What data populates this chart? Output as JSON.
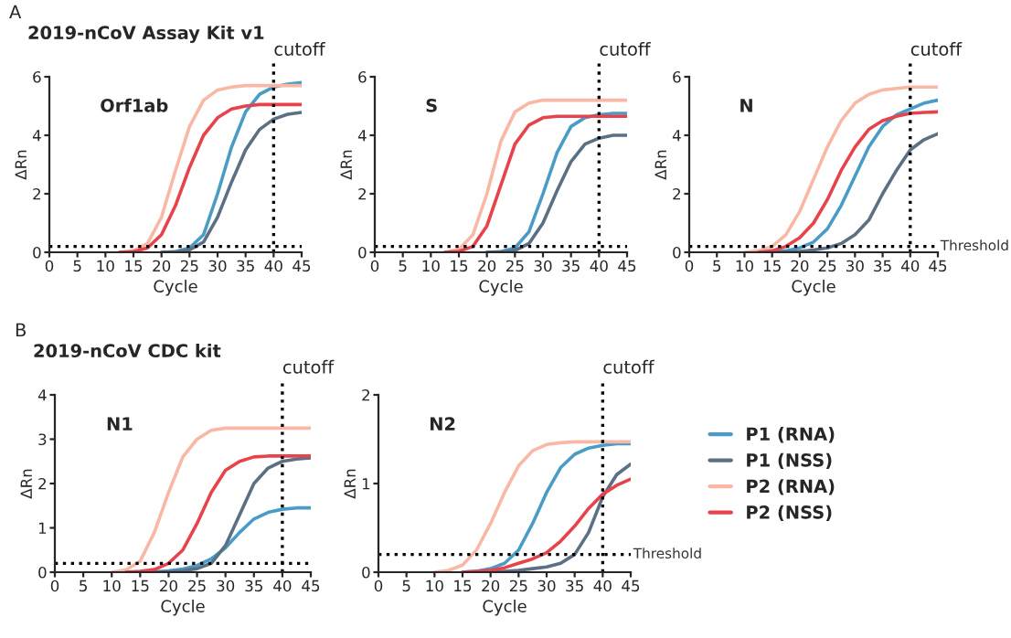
{
  "chart_data": [
    {
      "type": "line",
      "title": "2019-nCoV Assay Kit v1",
      "annotations": [
        "Orf1ab",
        "A"
      ],
      "xlabel": "Cycle",
      "ylabel": "ΔRn",
      "xlim": [
        0,
        45
      ],
      "xticks": [
        0,
        5,
        10,
        15,
        20,
        25,
        30,
        35,
        40,
        45
      ],
      "ylim": [
        0,
        6
      ],
      "yticks": [
        0,
        2,
        4,
        6
      ],
      "grid": false,
      "legend": false,
      "line_style": "solid",
      "x": [
        12.5,
        15,
        17.5,
        20,
        22.5,
        25,
        27.5,
        30,
        32.5,
        35,
        37.5,
        40,
        42.5,
        45
      ],
      "ref_lines": [
        {
          "axis": "x",
          "value": 40,
          "label": "cutoff",
          "color": "#000000",
          "line_style": "dotted"
        },
        {
          "axis": "y",
          "value": 0.2,
          "label": null,
          "color": "#000000",
          "line_style": "dotted"
        }
      ],
      "series": [
        {
          "color": "#4a9cc7",
          "values": [
            null,
            null,
            null,
            0,
            0.02,
            0.15,
            0.6,
            2.0,
            3.6,
            4.8,
            5.4,
            5.65,
            5.75,
            5.8
          ]
        },
        {
          "color": "#5b6f85",
          "values": [
            null,
            null,
            null,
            0,
            0.01,
            0.08,
            0.35,
            1.2,
            2.4,
            3.5,
            4.2,
            4.55,
            4.72,
            4.78
          ]
        },
        {
          "color": "#f9b8a5",
          "values": [
            0,
            0.05,
            0.3,
            1.2,
            2.8,
            4.3,
            5.2,
            5.55,
            5.65,
            5.7,
            5.7,
            5.7,
            5.7,
            5.7
          ]
        },
        {
          "color": "#e8434b",
          "values": [
            0,
            0.02,
            0.15,
            0.6,
            1.6,
            2.9,
            4.0,
            4.6,
            4.9,
            5.0,
            5.05,
            5.05,
            5.05,
            5.05
          ]
        }
      ]
    },
    {
      "type": "line",
      "annotations": [
        "S"
      ],
      "xlabel": "Cycle",
      "ylabel": "ΔRn",
      "xlim": [
        0,
        45
      ],
      "xticks": [
        0,
        5,
        10,
        15,
        20,
        25,
        30,
        35,
        40,
        45
      ],
      "ylim": [
        0,
        6
      ],
      "yticks": [
        0,
        2,
        4,
        6
      ],
      "grid": false,
      "legend": false,
      "line_style": "solid",
      "x": [
        12.5,
        15,
        17.5,
        20,
        22.5,
        25,
        27.5,
        30,
        32.5,
        35,
        37.5,
        40,
        42.5,
        45
      ],
      "ref_lines": [
        {
          "axis": "x",
          "value": 40,
          "label": "cutoff",
          "color": "#000000",
          "line_style": "dotted"
        },
        {
          "axis": "y",
          "value": 0.2,
          "label": null,
          "color": "#000000",
          "line_style": "dotted"
        }
      ],
      "series": [
        {
          "color": "#4a9cc7",
          "values": [
            null,
            null,
            null,
            0,
            0.02,
            0.15,
            0.7,
            2.0,
            3.4,
            4.3,
            4.6,
            4.7,
            4.75,
            4.75
          ]
        },
        {
          "color": "#5b6f85",
          "values": [
            null,
            null,
            null,
            0,
            0.01,
            0.06,
            0.3,
            1.0,
            2.1,
            3.1,
            3.7,
            3.9,
            4.0,
            4.0
          ]
        },
        {
          "color": "#f9b8a5",
          "values": [
            0,
            0.1,
            0.6,
            2.0,
            3.8,
            4.8,
            5.1,
            5.2,
            5.2,
            5.2,
            5.2,
            5.2,
            5.2,
            5.2
          ]
        },
        {
          "color": "#e8434b",
          "values": [
            0,
            0.03,
            0.2,
            0.9,
            2.3,
            3.7,
            4.35,
            4.6,
            4.65,
            4.65,
            4.65,
            4.65,
            4.65,
            4.65
          ]
        }
      ]
    },
    {
      "type": "line",
      "annotations": [
        "N"
      ],
      "xlabel": "Cycle",
      "ylabel": "ΔRn",
      "xlim": [
        0,
        45
      ],
      "xticks": [
        0,
        5,
        10,
        15,
        20,
        25,
        30,
        35,
        40,
        45
      ],
      "ylim": [
        0,
        6
      ],
      "yticks": [
        0,
        2,
        4,
        6
      ],
      "grid": false,
      "legend": false,
      "line_style": "solid",
      "x": [
        10,
        12.5,
        15,
        17.5,
        20,
        22.5,
        25,
        27.5,
        30,
        32.5,
        35,
        37.5,
        40,
        42.5,
        45
      ],
      "ref_lines": [
        {
          "axis": "x",
          "value": 40,
          "label": "cutoff",
          "color": "#000000",
          "line_style": "dotted"
        },
        {
          "axis": "y",
          "value": 0.2,
          "label": "Threshold",
          "color": "#000000",
          "line_style": "dotted"
        }
      ],
      "series": [
        {
          "color": "#4a9cc7",
          "values": [
            null,
            null,
            0,
            0.05,
            0.15,
            0.35,
            0.8,
            1.6,
            2.6,
            3.6,
            4.3,
            4.7,
            4.9,
            5.1,
            5.2
          ]
        },
        {
          "color": "#5b6f85",
          "values": [
            null,
            null,
            0,
            0.01,
            0.03,
            0.08,
            0.15,
            0.3,
            0.6,
            1.1,
            2.0,
            2.8,
            3.5,
            3.85,
            4.05
          ]
        },
        {
          "color": "#f9b8a5",
          "values": [
            0,
            0.05,
            0.2,
            0.6,
            1.4,
            2.5,
            3.6,
            4.5,
            5.1,
            5.4,
            5.55,
            5.6,
            5.65,
            5.65,
            5.65
          ]
        },
        {
          "color": "#e8434b",
          "values": [
            null,
            0,
            0.05,
            0.2,
            0.5,
            1.0,
            1.8,
            2.8,
            3.6,
            4.2,
            4.5,
            4.65,
            4.75,
            4.78,
            4.8
          ]
        }
      ]
    },
    {
      "type": "line",
      "title": "2019-nCoV CDC kit",
      "annotations": [
        "N1",
        "B"
      ],
      "xlabel": "Cycle",
      "ylabel": "ΔRn",
      "xlim": [
        0,
        45
      ],
      "xticks": [
        0,
        5,
        10,
        15,
        20,
        25,
        30,
        35,
        40,
        45
      ],
      "ylim": [
        0,
        4
      ],
      "yticks": [
        0,
        1,
        2,
        3,
        4
      ],
      "grid": false,
      "legend": false,
      "line_style": "solid",
      "x": [
        10,
        12.5,
        15,
        17.5,
        20,
        22.5,
        25,
        27.5,
        30,
        32.5,
        35,
        37.5,
        40,
        42.5,
        45
      ],
      "ref_lines": [
        {
          "axis": "x",
          "value": 40,
          "label": "cutoff",
          "color": "#000000",
          "line_style": "dotted"
        },
        {
          "axis": "y",
          "value": 0.2,
          "label": null,
          "color": "#000000",
          "line_style": "dotted"
        }
      ],
      "series": [
        {
          "color": "#4a9cc7",
          "values": [
            null,
            null,
            0,
            0.01,
            0.03,
            0.07,
            0.15,
            0.3,
            0.55,
            0.9,
            1.2,
            1.35,
            1.42,
            1.45,
            1.45
          ]
        },
        {
          "color": "#5b6f85",
          "values": [
            null,
            null,
            0,
            0.0,
            0.01,
            0.03,
            0.08,
            0.2,
            0.6,
            1.3,
            2.0,
            2.35,
            2.5,
            2.55,
            2.58
          ]
        },
        {
          "color": "#f9b8a5",
          "values": [
            0,
            0.05,
            0.25,
            0.9,
            1.8,
            2.6,
            3.0,
            3.2,
            3.25,
            3.25,
            3.25,
            3.25,
            3.25,
            3.25,
            3.25
          ]
        },
        {
          "color": "#e8434b",
          "values": [
            null,
            0,
            0.02,
            0.06,
            0.2,
            0.5,
            1.1,
            1.8,
            2.3,
            2.5,
            2.6,
            2.62,
            2.62,
            2.62,
            2.62
          ]
        }
      ]
    },
    {
      "type": "line",
      "annotations": [
        "N2"
      ],
      "xlabel": "Cycle",
      "ylabel": "ΔRn",
      "xlim": [
        0,
        45
      ],
      "xticks": [
        0,
        5,
        10,
        15,
        20,
        25,
        30,
        35,
        40,
        45
      ],
      "ylim": [
        0,
        2
      ],
      "yticks": [
        0,
        1,
        2
      ],
      "grid": false,
      "legend": "right",
      "line_style": "solid",
      "x": [
        10,
        12.5,
        15,
        17.5,
        20,
        22.5,
        25,
        27.5,
        30,
        32.5,
        35,
        37.5,
        40,
        42.5,
        45
      ],
      "ref_lines": [
        {
          "axis": "x",
          "value": 40,
          "label": "cutoff",
          "color": "#000000",
          "line_style": "dotted"
        },
        {
          "axis": "y",
          "value": 0.2,
          "label": "Threshold",
          "color": "#000000",
          "line_style": "dotted"
        }
      ],
      "series": [
        {
          "name": "P1 (RNA)",
          "color": "#4a9cc7",
          "values": [
            null,
            null,
            0,
            0.01,
            0.04,
            0.1,
            0.25,
            0.55,
            0.9,
            1.18,
            1.33,
            1.4,
            1.43,
            1.45,
            1.45
          ]
        },
        {
          "name": "P1 (NSS)",
          "color": "#5b6f85",
          "values": [
            null,
            null,
            null,
            null,
            0,
            0.01,
            0.02,
            0.04,
            0.06,
            0.1,
            0.2,
            0.45,
            0.85,
            1.1,
            1.22
          ]
        },
        {
          "name": "P2 (RNA)",
          "color": "#f9b8a5",
          "values": [
            0,
            0.02,
            0.08,
            0.25,
            0.55,
            0.9,
            1.2,
            1.37,
            1.44,
            1.46,
            1.47,
            1.47,
            1.47,
            1.47,
            1.47
          ]
        },
        {
          "name": "P2 (NSS)",
          "color": "#e8434b",
          "values": [
            null,
            null,
            0,
            0.01,
            0.02,
            0.05,
            0.1,
            0.15,
            0.22,
            0.35,
            0.52,
            0.72,
            0.88,
            0.98,
            1.05
          ]
        }
      ]
    }
  ]
}
